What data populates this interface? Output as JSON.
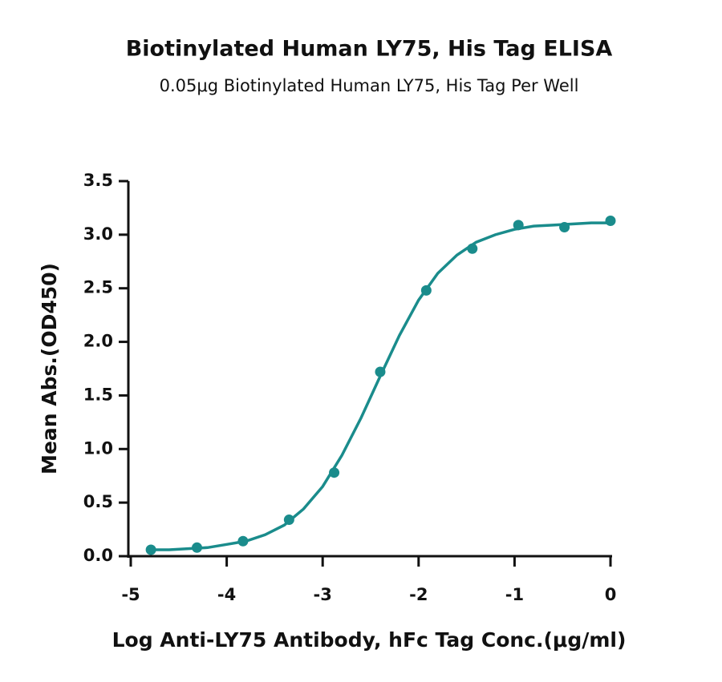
{
  "chart_data": {
    "type": "scatter",
    "title": "Biotinylated Human LY75, His Tag ELISA",
    "subtitle": "0.05μg Biotinylated Human LY75, His Tag Per Well",
    "x_label": "Log Anti-LY75 Antibody, hFc Tag Conc.(μg/ml)",
    "y_label": "Mean Abs.(OD450)",
    "color": "#1a8c8c",
    "x": [
      -4.79,
      -4.31,
      -3.83,
      -3.35,
      -2.88,
      -2.4,
      -1.92,
      -1.44,
      -0.96,
      -0.48,
      0
    ],
    "values": [
      0.06,
      0.08,
      0.14,
      0.34,
      0.78,
      1.72,
      2.48,
      2.87,
      3.09,
      3.07,
      3.13
    ],
    "curve": {
      "x": [
        -4.8,
        -4.6,
        -4.4,
        -4.2,
        -4.0,
        -3.8,
        -3.6,
        -3.4,
        -3.2,
        -3.0,
        -2.8,
        -2.6,
        -2.4,
        -2.2,
        -2.0,
        -1.8,
        -1.6,
        -1.4,
        -1.2,
        -1.0,
        -0.8,
        -0.6,
        -0.4,
        -0.2,
        0
      ],
      "values": [
        0.06,
        0.06,
        0.07,
        0.08,
        0.11,
        0.14,
        0.2,
        0.29,
        0.44,
        0.65,
        0.94,
        1.29,
        1.68,
        2.06,
        2.39,
        2.64,
        2.81,
        2.93,
        3.0,
        3.05,
        3.08,
        3.09,
        3.1,
        3.11,
        3.11
      ]
    },
    "xlim": [
      -5,
      0
    ],
    "xticks": [
      -5,
      -4,
      -3,
      -2,
      -1,
      0
    ],
    "ylim": [
      0,
      3.5
    ],
    "yticks": [
      {
        "value": 0,
        "label": "0.0"
      },
      0.5,
      {
        "value": 1,
        "label": "1.0"
      },
      1.5,
      {
        "value": 2,
        "label": "2.0"
      },
      2.5,
      {
        "value": 3,
        "label": "3.0"
      },
      3.5
    ]
  }
}
